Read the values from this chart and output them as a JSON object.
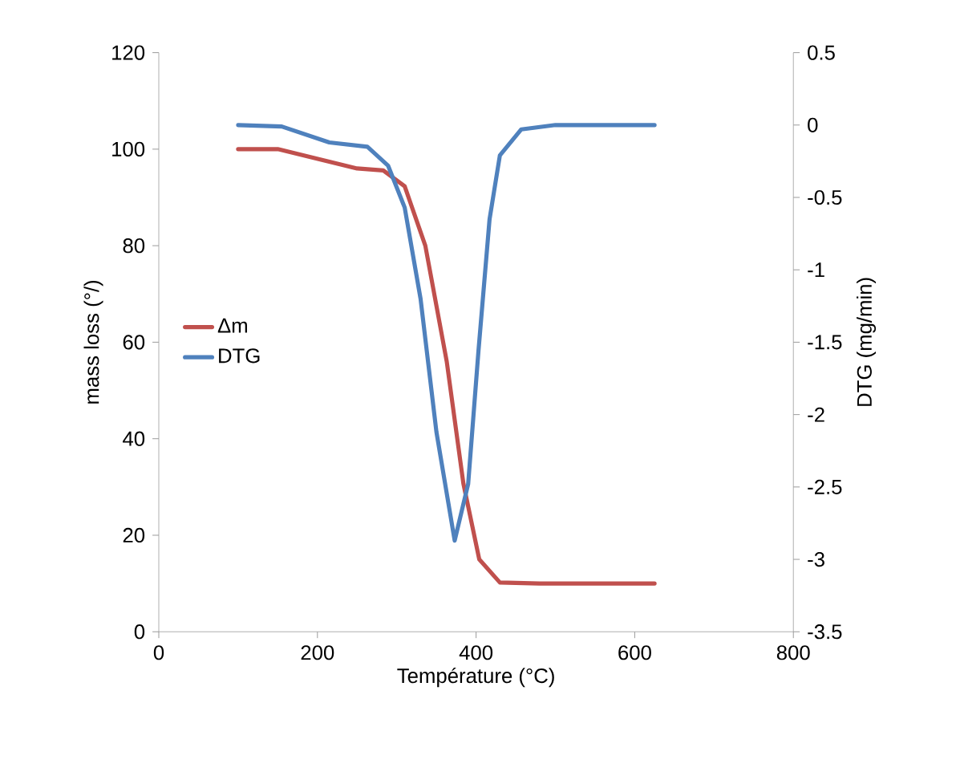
{
  "chart_data": {
    "type": "line",
    "xlabel": "Température (°C)",
    "ylabel": "mass loss (°/)",
    "y2label": "DTG (mg/min)",
    "xlim": [
      0,
      800
    ],
    "xticks": [
      0,
      200,
      400,
      600,
      800
    ],
    "ylim": [
      0,
      120
    ],
    "yticks": [
      0,
      20,
      40,
      60,
      80,
      100,
      120
    ],
    "y2lim": [
      -3.5,
      0.5
    ],
    "y2ticks": [
      -3.5,
      -3,
      -2.5,
      -2,
      -1.5,
      -1,
      -0.5,
      0,
      0.5
    ],
    "legend": "left",
    "grid": false,
    "marker": "none",
    "line_style": "solid",
    "series": [
      {
        "name": "Δm",
        "color": "#c0504d",
        "x": [
          100,
          150,
          200,
          250,
          283,
          310,
          336,
          363,
          384,
          404,
          430,
          480,
          625
        ],
        "values": [
          100,
          100,
          98,
          96,
          95.6,
          92.3,
          80,
          56,
          30.7,
          15,
          10.2,
          10,
          10
        ]
      },
      {
        "name": "DTG",
        "color": "#4f81bd",
        "axis": "y2",
        "x": [
          100,
          155,
          215,
          263,
          289,
          310,
          330,
          350,
          373,
          390,
          403,
          417,
          430,
          457,
          500,
          625
        ],
        "values": [
          0,
          -0.01,
          -0.12,
          -0.15,
          -0.28,
          -0.57,
          -1.2,
          -2.12,
          -2.87,
          -2.48,
          -1.56,
          -0.65,
          -0.21,
          -0.03,
          0,
          0
        ]
      }
    ]
  }
}
